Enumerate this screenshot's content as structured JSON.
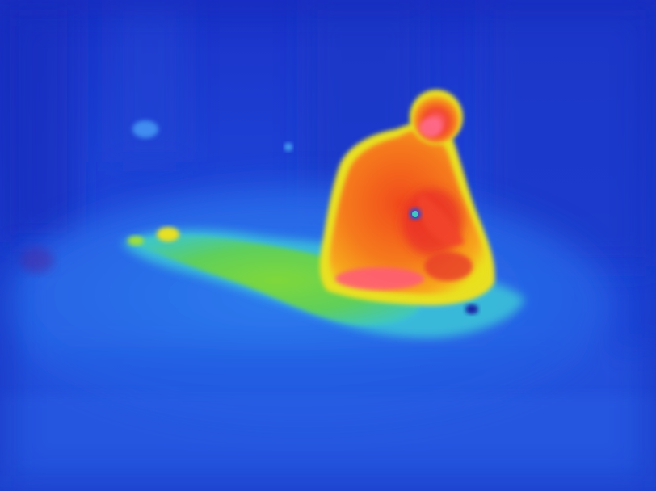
{
  "image": {
    "kind": "thermal-camera-frame",
    "palette": {
      "coldest": "#0b1fb8",
      "cold": "#1f4fe0",
      "cool": "#2f7cf0",
      "mild": "#34b0f0",
      "neutral": "#3fd6a0",
      "warm_green": "#7fd83a",
      "warm_yellow": "#e8e020",
      "warm_orange": "#f7a21a",
      "hot_orange": "#f2611c",
      "hot_red": "#e8262a",
      "hottest": "#ff5a7a"
    }
  }
}
